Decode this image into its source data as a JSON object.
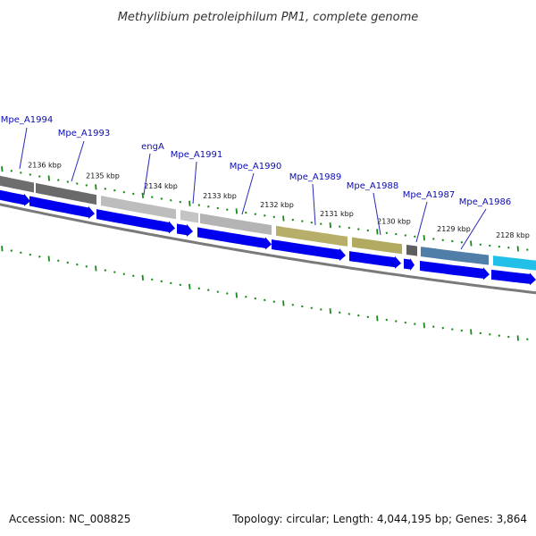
{
  "title": "Methylibium petroleiphilum PM1, complete genome",
  "footer": {
    "accession": "Accession: NC_008825",
    "info": "Topology: circular; Length: 4,044,195 bp; Genes: 3,864"
  },
  "kbp_labels": [
    "2136 kbp",
    "2135 kbp",
    "2134 kbp",
    "2133 kbp",
    "2132 kbp",
    "2131 kbp",
    "2130 kbp",
    "2129 kbp",
    "2128 kbp"
  ],
  "genes": [
    {
      "name": "Mpe_A1994",
      "color": "#6e6e6e"
    },
    {
      "name": "Mpe_A1993",
      "color": "#6a6a6a"
    },
    {
      "name": "engA",
      "color": "#bdbdbd"
    },
    {
      "name": "Mpe_A1991",
      "color": "#c4c4c4"
    },
    {
      "name": "Mpe_A1990",
      "color": "#b4b4b4"
    },
    {
      "name": "Mpe_A1989",
      "color": "#b7ae69"
    },
    {
      "name": "Mpe_A1988",
      "color": "#b3aa62"
    },
    {
      "name": "Mpe_A1987",
      "color": "#5e5e5e"
    },
    {
      "name": "Mpe_A1986",
      "color": "#4f7fa8"
    }
  ],
  "extra_gene_color": "#22c0e8",
  "colors": {
    "arrow": "#0000ee",
    "backbone": "#7a7a7a",
    "tick": "#1a8a1a"
  }
}
